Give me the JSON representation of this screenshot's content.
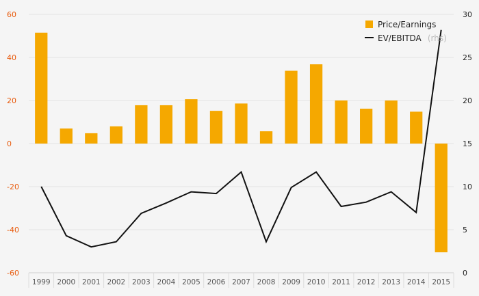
{
  "chart_data": {
    "type": "bar",
    "categories": [
      "1999",
      "2000",
      "2001",
      "2002",
      "2003",
      "2004",
      "2005",
      "2006",
      "2007",
      "2008",
      "2009",
      "2010",
      "2011",
      "2012",
      "2013",
      "2014",
      "2015"
    ],
    "series": [
      {
        "name": "Price/Earnings",
        "type": "bar",
        "axis": "left",
        "color": "#f5a800",
        "values": [
          51.5,
          7,
          4.8,
          8,
          17.8,
          17.8,
          20.6,
          15.2,
          18.6,
          5.7,
          33.8,
          36.8,
          20,
          16.2,
          20,
          14.8,
          -50.5
        ]
      },
      {
        "name": "EV/EBITDA",
        "type": "line",
        "axis": "right",
        "color": "#111111",
        "values": [
          10,
          4.3,
          3,
          3.6,
          6.9,
          8.1,
          9.4,
          9.2,
          11.7,
          3.6,
          9.9,
          11.7,
          7.7,
          8.2,
          9.4,
          7,
          28.2
        ]
      }
    ],
    "y_left": {
      "ylim": [
        -60,
        60
      ],
      "ticks": [
        "60",
        "40",
        "20",
        "0",
        "-20",
        "-40",
        "-60"
      ],
      "tick_values": [
        60,
        40,
        20,
        0,
        -20,
        -40,
        -60
      ]
    },
    "y_right": {
      "ylim": [
        0,
        30
      ],
      "ticks": [
        "30",
        "25",
        "20",
        "15",
        "10",
        "5",
        "0"
      ],
      "tick_values": [
        30,
        25,
        20,
        15,
        10,
        5,
        0
      ]
    },
    "legend": {
      "position": "top-right",
      "bar_label": "Price/Earnings",
      "line_label": "EV/EBITDA",
      "line_note": "(rhs)"
    },
    "grid": "horizontal",
    "title": "",
    "xlabel": "",
    "ylabel": ""
  },
  "colors": {
    "bar": "#f5a800",
    "line": "#111111",
    "left_ticks": "#e85a0c",
    "right_ticks": "#222222",
    "grid": "#e2e2e2",
    "background": "#f5f5f5"
  }
}
